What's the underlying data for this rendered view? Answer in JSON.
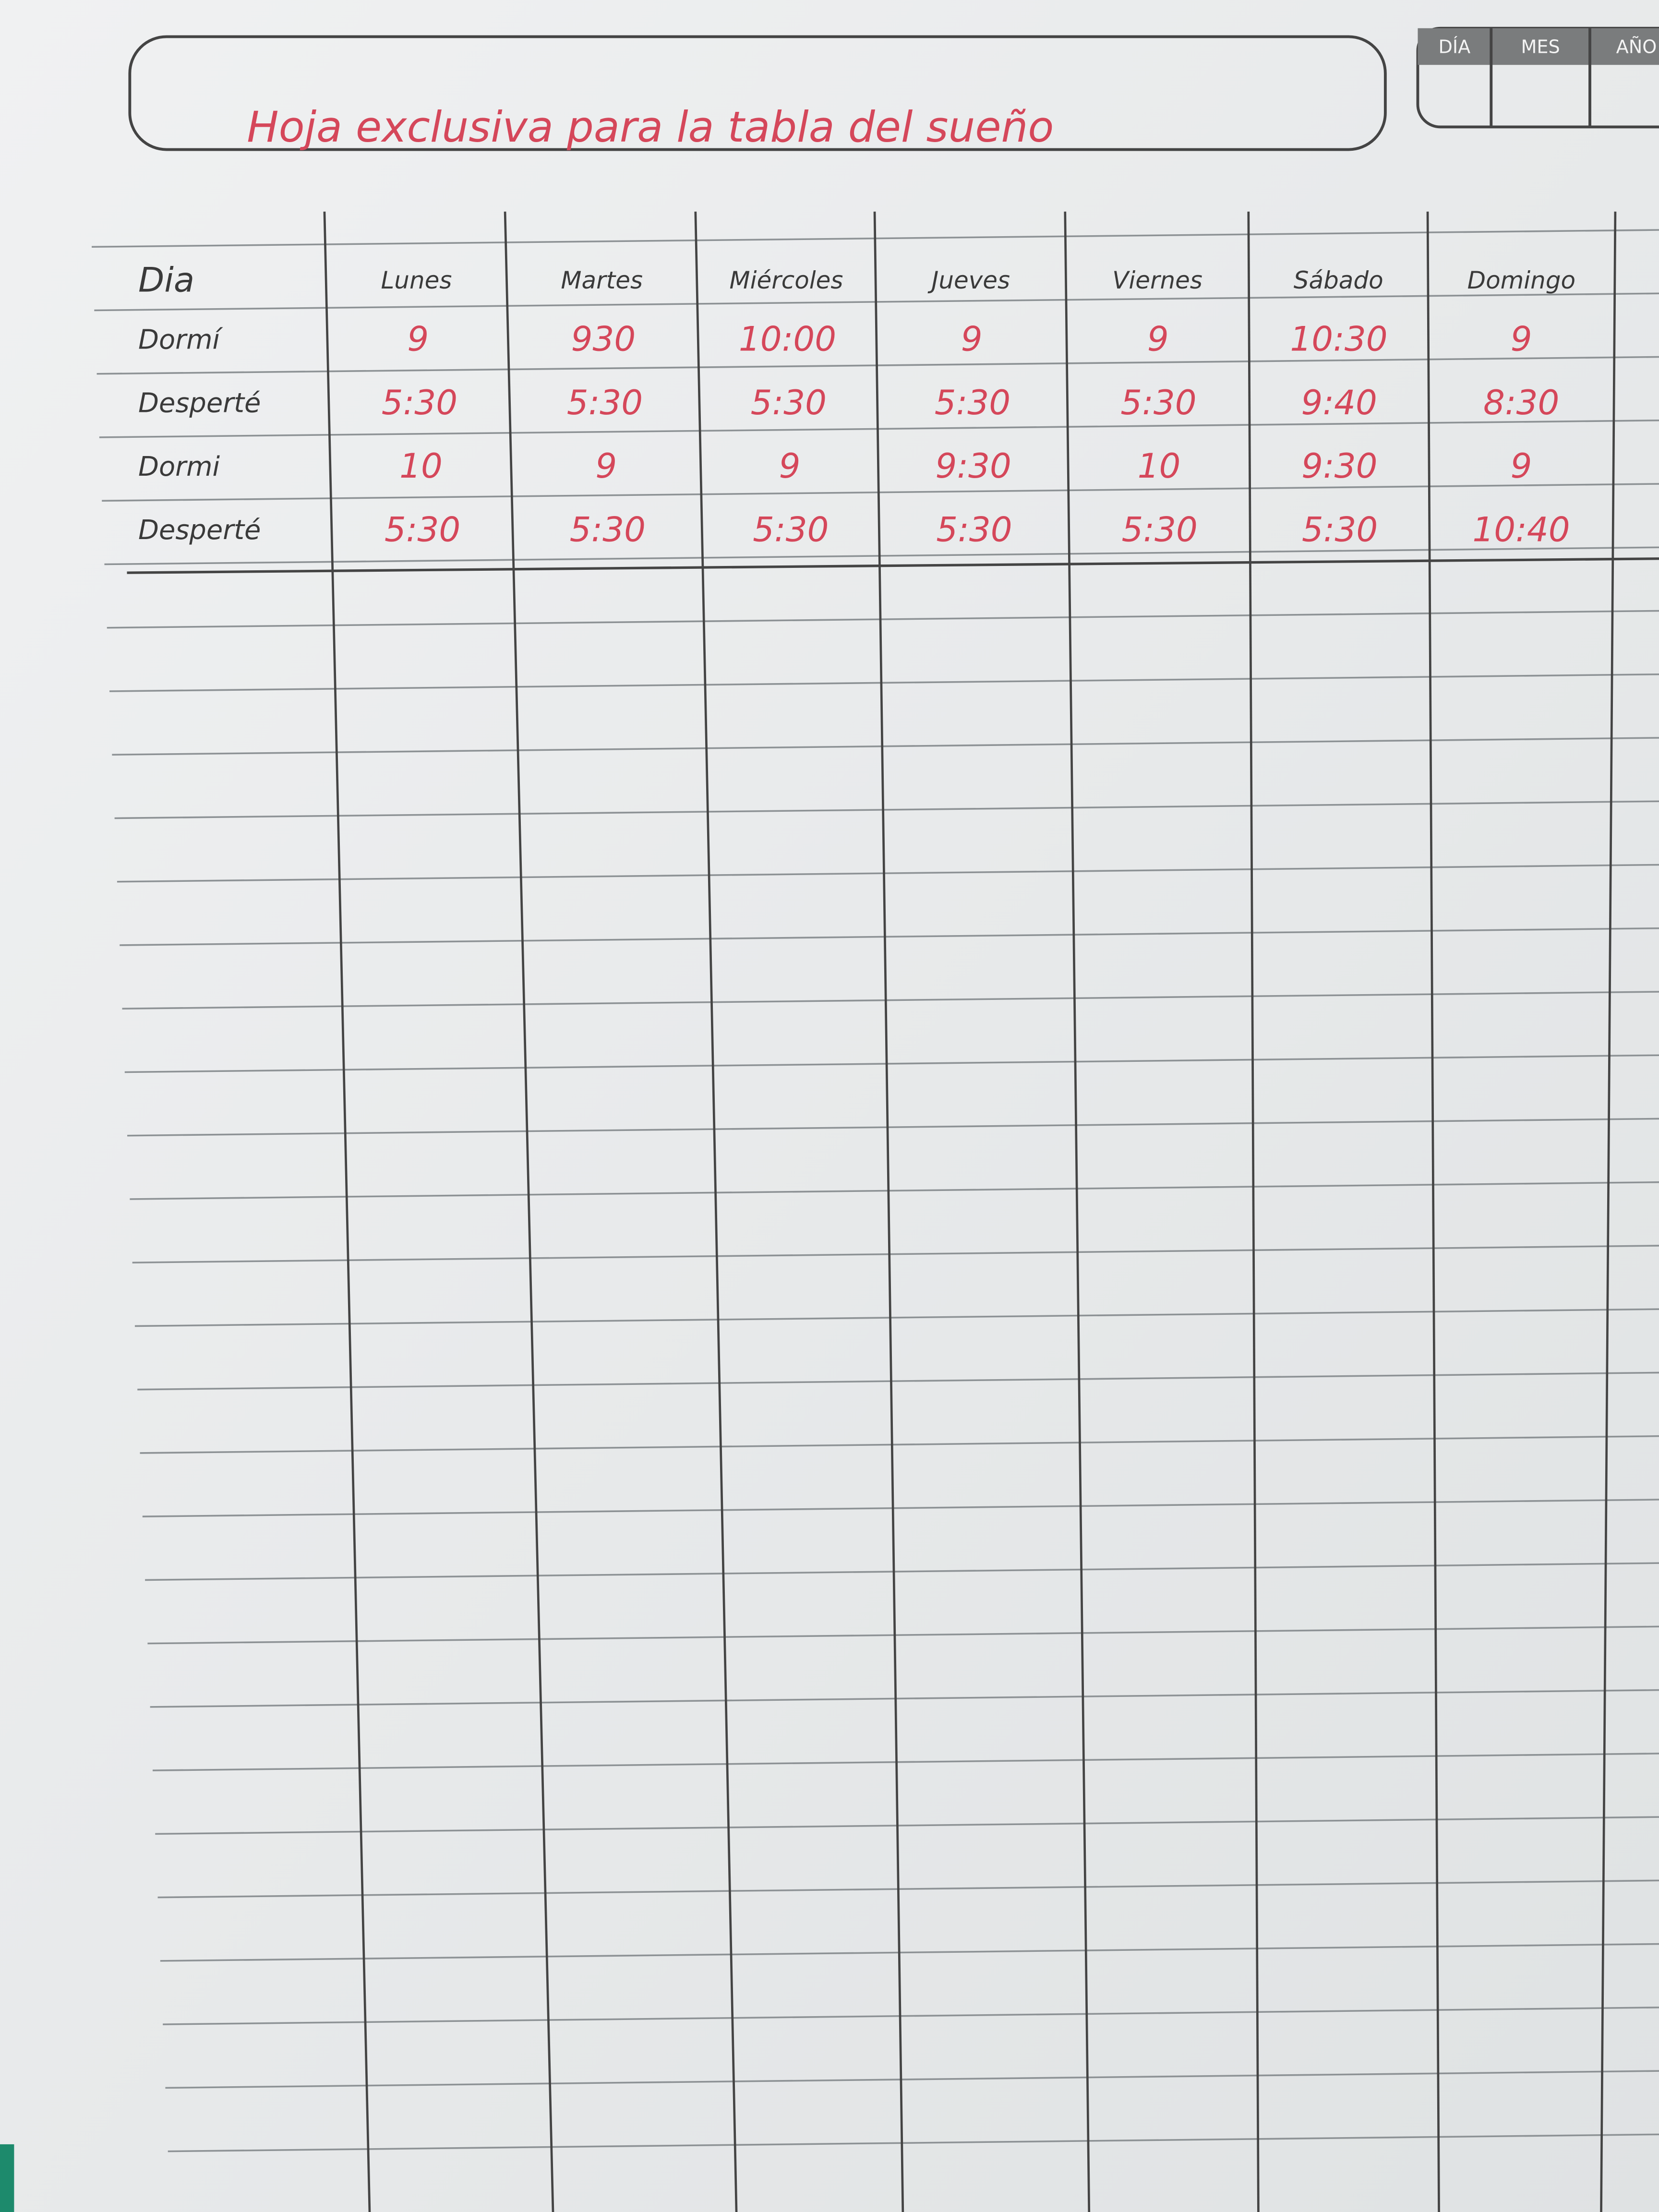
{
  "header": {
    "title": "Hoja exclusiva para la tabla del sueño",
    "date_box": [
      "DÍA",
      "MES",
      "AÑO"
    ]
  },
  "table": {
    "header": [
      "Dia",
      "Lunes",
      "Martes",
      "Miércoles",
      "Jueves",
      "Viernes",
      "Sábado",
      "Domingo"
    ],
    "rows": [
      [
        "Dormí",
        "9",
        "930",
        "10:00",
        "9",
        "9",
        "10:30",
        "9"
      ],
      [
        "Desperté",
        "5:30",
        "5:30",
        "5:30",
        "5:30",
        "5:30",
        "9:40",
        "8:30"
      ],
      [
        "Dormi",
        "10",
        "9",
        "9",
        "9:30",
        "10",
        "9:30",
        "9"
      ],
      [
        "Desperté",
        "5:30",
        "5:30",
        "5:30",
        "5:30",
        "5:30",
        "5:30",
        "10:40"
      ]
    ]
  }
}
